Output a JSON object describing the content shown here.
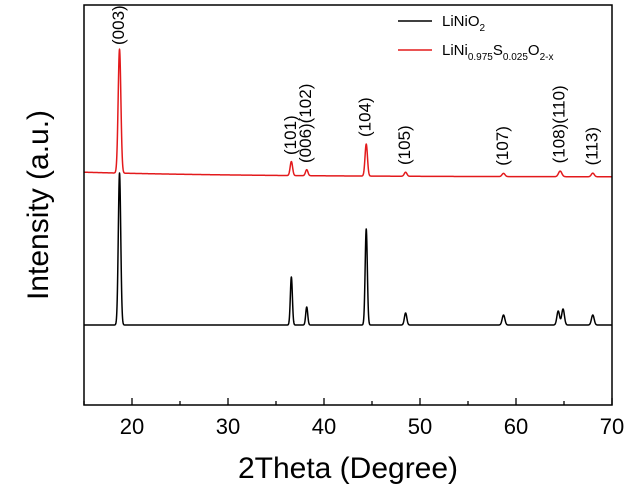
{
  "chart_data": {
    "type": "line",
    "xlabel": "2Theta (Degree)",
    "ylabel": "Intensity (a.u.)",
    "xlim": [
      15,
      70
    ],
    "ylim": [
      0,
      100
    ],
    "x_ticks": [
      20,
      30,
      40,
      50,
      60,
      70
    ],
    "y_ticks_labeled": false,
    "grid": false,
    "legend_position": "top-right",
    "legend": [
      {
        "series": "LiNiO2",
        "parts": [
          {
            "t": "LiNiO",
            "sub": false
          },
          {
            "t": "2",
            "sub": true
          }
        ]
      },
      {
        "series": "LiNi0.975S0.025O2-x",
        "parts": [
          {
            "t": "LiNi",
            "sub": false
          },
          {
            "t": "0.975",
            "sub": true
          },
          {
            "t": "S",
            "sub": false
          },
          {
            "t": "0.025",
            "sub": true
          },
          {
            "t": "O",
            "sub": false
          },
          {
            "t": "2-x",
            "sub": true
          }
        ]
      }
    ],
    "series": [
      {
        "name": "LiNiO2",
        "color": "#000000",
        "baseline": 20,
        "peaks": [
          {
            "x": 18.7,
            "height": 38,
            "width": 0.18
          },
          {
            "x": 36.6,
            "height": 12,
            "width": 0.15
          },
          {
            "x": 38.2,
            "height": 4.5,
            "width": 0.15
          },
          {
            "x": 44.4,
            "height": 24,
            "width": 0.16
          },
          {
            "x": 48.5,
            "height": 3,
            "width": 0.18
          },
          {
            "x": 58.7,
            "height": 2.5,
            "width": 0.2
          },
          {
            "x": 64.4,
            "height": 3.5,
            "width": 0.2
          },
          {
            "x": 64.9,
            "height": 4,
            "width": 0.2
          },
          {
            "x": 68.0,
            "height": 2.5,
            "width": 0.2
          }
        ]
      },
      {
        "name": "LiNi0.975S0.025O2-x",
        "color": "#e31a1c",
        "baseline": 57,
        "start_offset": 1.2,
        "peaks": [
          {
            "x": 18.7,
            "height": 31,
            "width": 0.2
          },
          {
            "x": 36.6,
            "height": 3.5,
            "width": 0.18
          },
          {
            "x": 38.2,
            "height": 1.5,
            "width": 0.18
          },
          {
            "x": 44.4,
            "height": 8,
            "width": 0.18
          },
          {
            "x": 48.5,
            "height": 1,
            "width": 0.2
          },
          {
            "x": 58.7,
            "height": 0.8,
            "width": 0.22
          },
          {
            "x": 64.6,
            "height": 1.4,
            "width": 0.25
          },
          {
            "x": 68.0,
            "height": 0.9,
            "width": 0.22
          }
        ]
      }
    ],
    "annotations": [
      {
        "text": "(003)",
        "x": 18.7
      },
      {
        "text": "(101)",
        "x": 36.6
      },
      {
        "text": "(006)(102)",
        "x": 38.2
      },
      {
        "text": "(104)",
        "x": 44.4
      },
      {
        "text": "(105)",
        "x": 48.5
      },
      {
        "text": "(107)",
        "x": 58.7
      },
      {
        "text": "(108)(110)",
        "x": 64.6
      },
      {
        "text": "(113)",
        "x": 68.0
      }
    ]
  }
}
